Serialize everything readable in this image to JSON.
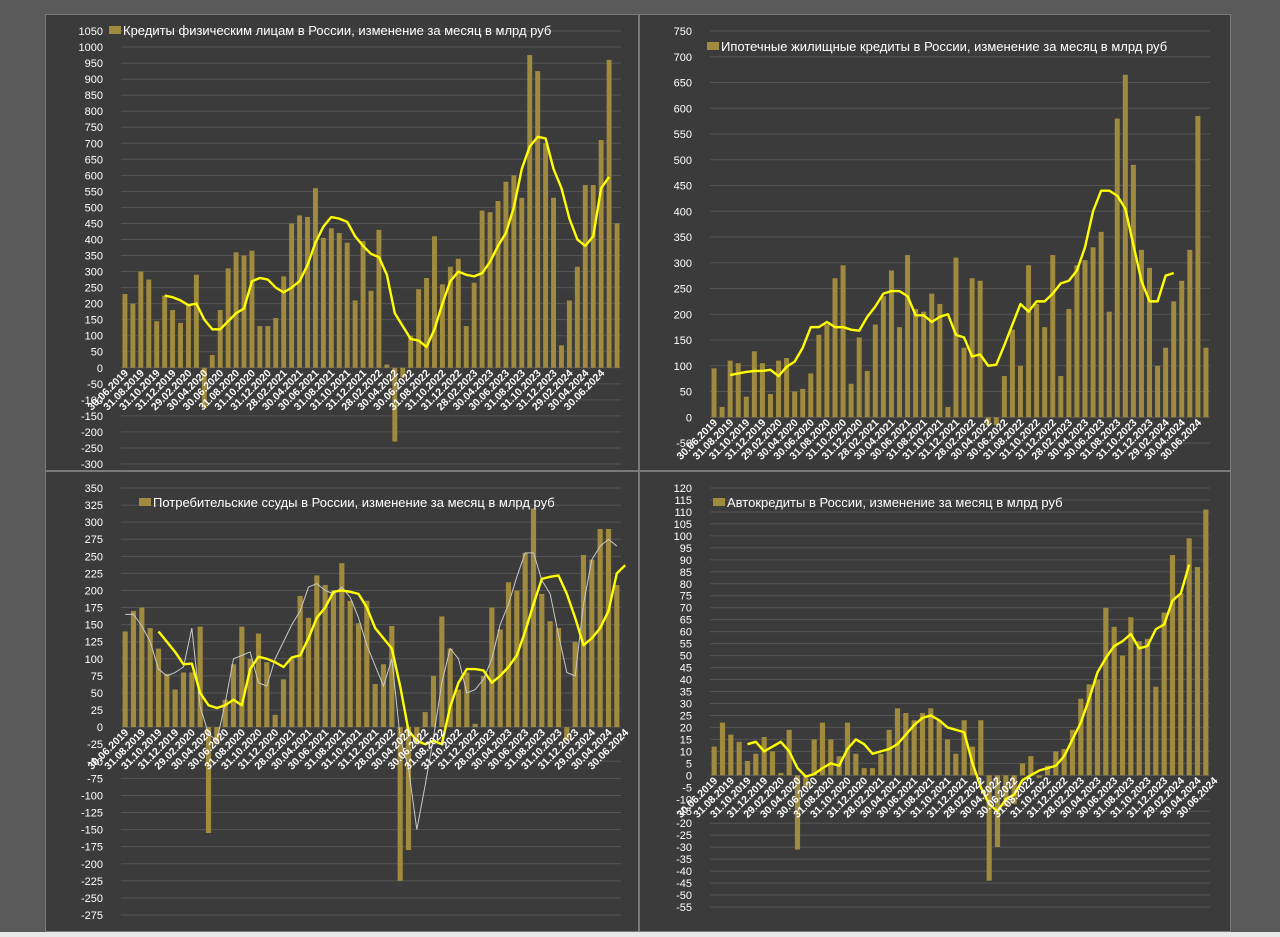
{
  "colors": {
    "bar": "#a08a3e",
    "trend": "#ffff00",
    "thin_line": "#c8c8c8",
    "panel_bg": "#3b3b3b",
    "grid": "#555555",
    "text": "#ffffff"
  },
  "chart_data": [
    {
      "type": "bar",
      "title": "Кредиты физическим лицам  в России, изменение за месяц в млрд руб",
      "legend": "Кредиты физическим лицам  в России, изменение за месяц в млрд руб",
      "ylim": [
        -300,
        1050
      ],
      "ystep": 50,
      "grid": true,
      "legend_position": "top",
      "xtick_labels": [
        "30.06.2019",
        "31.08.2019",
        "31.10.2019",
        "31.12.2019",
        "29.02.2020",
        "30.04.2020",
        "30.06.2020",
        "31.08.2020",
        "31.10.2020",
        "31.12.2020",
        "28.02.2021",
        "30.04.2021",
        "30.06.2021",
        "31.08.2021",
        "31.10.2021",
        "31.12.2021",
        "28.02.2022",
        "30.04.2022",
        "30.06.2022",
        "31.08.2022",
        "31.10.2022",
        "31.12.2022",
        "28.02.2023",
        "30.04.2023",
        "30.06.2023",
        "31.08.2023",
        "31.10.2023",
        "31.12.2023",
        "29.02.2024",
        "30.04.2024",
        "30.06.2024"
      ],
      "values": [
        230,
        200,
        300,
        275,
        145,
        225,
        180,
        140,
        195,
        290,
        -125,
        40,
        180,
        310,
        360,
        350,
        365,
        130,
        130,
        155,
        285,
        450,
        475,
        470,
        560,
        405,
        435,
        420,
        390,
        210,
        395,
        240,
        430,
        10,
        -230,
        -30,
        100,
        245,
        280,
        410,
        260,
        315,
        340,
        130,
        265,
        490,
        485,
        520,
        580,
        600,
        530,
        975,
        925,
        700,
        530,
        70,
        210,
        315,
        570,
        570,
        710,
        960,
        450
      ],
      "trend": [
        null,
        null,
        null,
        null,
        null,
        225,
        220,
        210,
        195,
        200,
        150,
        120,
        120,
        145,
        170,
        185,
        270,
        280,
        275,
        250,
        235,
        250,
        270,
        320,
        390,
        440,
        470,
        465,
        455,
        410,
        380,
        355,
        345,
        290,
        170,
        130,
        90,
        85,
        65,
        120,
        200,
        270,
        300,
        290,
        285,
        295,
        330,
        380,
        420,
        500,
        620,
        690,
        720,
        715,
        620,
        560,
        465,
        400,
        380,
        410,
        560,
        595
      ]
    },
    {
      "type": "bar",
      "title": "Ипотечные жилищные кредиты в России, изменение за месяц в млрд руб",
      "legend": "Ипотечные жилищные кредиты в России, изменение за месяц в млрд руб",
      "ylim": [
        -50,
        750
      ],
      "ystep": 50,
      "grid": true,
      "legend_position": "top",
      "xtick_labels": [
        "30.06.2019",
        "31.08.2019",
        "31.10.2019",
        "31.12.2019",
        "29.02.2020",
        "30.04.2020",
        "30.06.2020",
        "31.08.2020",
        "31.10.2020",
        "31.12.2020",
        "28.02.2021",
        "30.04.2021",
        "30.06.2021",
        "31.08.2021",
        "31.10.2021",
        "31.12.2021",
        "28.02.2022",
        "30.04.2022",
        "30.06.2022",
        "31.08.2022",
        "31.10.2022",
        "31.12.2022",
        "28.02.2023",
        "30.04.2023",
        "30.06.2023",
        "31.08.2023",
        "31.10.2023",
        "31.12.2023",
        "29.02.2024",
        "30.04.2024",
        "30.06.2024"
      ],
      "values": [
        95,
        20,
        110,
        105,
        40,
        128,
        105,
        45,
        110,
        115,
        50,
        55,
        85,
        160,
        180,
        270,
        295,
        65,
        155,
        90,
        180,
        235,
        285,
        175,
        315,
        210,
        205,
        240,
        220,
        20,
        310,
        135,
        270,
        265,
        -15,
        -15,
        80,
        170,
        100,
        295,
        220,
        175,
        315,
        80,
        210,
        295,
        305,
        330,
        360,
        205,
        580,
        665,
        490,
        325,
        290,
        100,
        135,
        225,
        265,
        325,
        585,
        135
      ],
      "trend": [
        null,
        null,
        82,
        85,
        88,
        90,
        90,
        92,
        80,
        98,
        108,
        135,
        175,
        175,
        185,
        175,
        175,
        170,
        168,
        195,
        215,
        240,
        245,
        245,
        235,
        198,
        198,
        185,
        195,
        200,
        160,
        155,
        118,
        122,
        100,
        102,
        140,
        180,
        220,
        205,
        225,
        225,
        240,
        260,
        265,
        285,
        330,
        400,
        440,
        440,
        430,
        405,
        335,
        265,
        225,
        225,
        275,
        280
      ]
    },
    {
      "type": "bar",
      "title": "Потребительские ссуды в России, изменение за месяц в млрд руб",
      "legend": "Потребительские ссуды в России, изменение за месяц в млрд руб",
      "ylim": [
        -275,
        350
      ],
      "ystep": 25,
      "grid": true,
      "legend_position": "top",
      "xtick_labels": [
        "30.06.2019",
        "31.08.2019",
        "31.10.2019",
        "31.12.2019",
        "29.02.2020",
        "30.04.2020",
        "30.06.2020",
        "31.08.2020",
        "31.10.2020",
        "31.12.2020",
        "28.02.2021",
        "30.04.2021",
        "30.06.2021",
        "31.08.2021",
        "31.10.2021",
        "31.12.2021",
        "28.02.2022",
        "30.04.2022",
        "30.06.2022",
        "31.08.2022",
        "31.10.2022",
        "31.12.2022",
        "28.02.2023",
        "30.04.2023",
        "30.06.2023",
        "31.08.2023",
        "31.10.2023",
        "31.12.2023",
        "29.02.2024",
        "30.04.2024",
        "30.06.2024"
      ],
      "values": [
        140,
        170,
        175,
        145,
        115,
        78,
        55,
        80,
        80,
        147,
        -155,
        -25,
        40,
        92,
        147,
        100,
        137,
        95,
        18,
        70,
        100,
        192,
        160,
        222,
        208,
        200,
        240,
        185,
        152,
        185,
        63,
        92,
        148,
        -225,
        -180,
        -25,
        22,
        75,
        162,
        115,
        55,
        80,
        5,
        75,
        175,
        143,
        212,
        200,
        255,
        320,
        195,
        155,
        145,
        -20,
        125,
        252,
        245,
        290,
        290,
        208
      ],
      "trend": [
        null,
        null,
        null,
        null,
        140,
        125,
        110,
        92,
        93,
        50,
        32,
        28,
        32,
        40,
        32,
        85,
        103,
        100,
        95,
        88,
        102,
        105,
        130,
        160,
        175,
        198,
        200,
        198,
        195,
        175,
        145,
        130,
        115,
        60,
        -5,
        -20,
        -25,
        -20,
        -25,
        30,
        65,
        85,
        85,
        83,
        65,
        75,
        88,
        105,
        140,
        180,
        217,
        220,
        222,
        195,
        160,
        120,
        130,
        145,
        170,
        225,
        237
      ],
      "thin": [
        165,
        165,
        148,
        125,
        85,
        75,
        80,
        88,
        145,
        30,
        -10,
        -20,
        35,
        100,
        105,
        110,
        65,
        60,
        100,
        125,
        150,
        170,
        205,
        210,
        200,
        195,
        205,
        190,
        160,
        120,
        90,
        60,
        100,
        -15,
        -60,
        -150,
        -85,
        -15,
        65,
        115,
        100,
        50,
        55,
        70,
        100,
        150,
        180,
        220,
        255,
        255,
        215,
        195,
        135,
        80,
        75,
        180,
        245,
        265,
        275,
        265
      ],
      "thin_name": ""
    },
    {
      "type": "bar",
      "title": "Автокредиты в России, изменение за месяц в млрд руб",
      "legend": "Автокредиты в России, изменение за месяц в млрд руб",
      "ylim": [
        -55,
        120
      ],
      "ystep": 5,
      "grid": true,
      "legend_position": "top",
      "xtick_labels": [
        "30.06.2019",
        "31.08.2019",
        "31.10.2019",
        "31.12.2019",
        "29.02.2020",
        "30.04.2020",
        "30.06.2020",
        "31.08.2020",
        "31.10.2020",
        "31.12.2020",
        "28.02.2021",
        "30.04.2021",
        "30.06.2021",
        "31.08.2021",
        "31.10.2021",
        "31.12.2021",
        "28.02.2022",
        "30.04.2022",
        "30.06.2022",
        "31.08.2022",
        "31.10.2022",
        "31.12.2022",
        "28.02.2023",
        "30.04.2023",
        "30.06.2023",
        "31.08.2023",
        "31.10.2023",
        "31.12.2023",
        "29.02.2024",
        "30.04.2024",
        "30.06.2024"
      ],
      "values": [
        12,
        22,
        17,
        14,
        6,
        9,
        16,
        10,
        1,
        19,
        -31,
        -5,
        15,
        22,
        15,
        8,
        22,
        9,
        3,
        3,
        9,
        19,
        28,
        26,
        23,
        26,
        28,
        23,
        15,
        9,
        23,
        12,
        23,
        -44,
        -30,
        -13,
        -12,
        5,
        8,
        -1,
        4,
        10,
        11,
        19,
        32,
        38,
        40,
        70,
        62,
        50,
        66,
        56,
        57,
        37,
        68,
        92,
        76,
        99,
        87,
        111
      ],
      "trend": [
        null,
        null,
        null,
        null,
        13,
        14,
        10,
        12,
        14,
        10,
        3,
        -0.5,
        0.5,
        3,
        5,
        4,
        11,
        15,
        13,
        9,
        10,
        11,
        13,
        17,
        21,
        24,
        25,
        23,
        20,
        19,
        18,
        5,
        -5,
        -12,
        -15,
        -10,
        -8,
        -2,
        0,
        2,
        3,
        4,
        8,
        15,
        22,
        32,
        43,
        49,
        54,
        56,
        59,
        53,
        54,
        61,
        63,
        73,
        76,
        88
      ],
      "thin": [],
      "thin_name": ""
    }
  ]
}
